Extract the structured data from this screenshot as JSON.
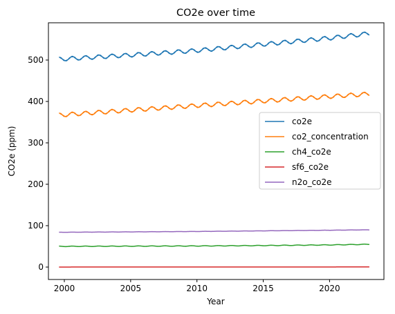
{
  "chart_data": {
    "type": "line",
    "title": "CO2e over time",
    "xlabel": "Year",
    "ylabel": "CO2e (ppm)",
    "xlim": [
      1998.8,
      2024.1
    ],
    "ylim": [
      -30,
      590
    ],
    "xticks": [
      2000,
      2005,
      2010,
      2015,
      2020
    ],
    "yticks": [
      0,
      100,
      200,
      300,
      400,
      500
    ],
    "grid": false,
    "legend_position": "center-right",
    "x_range": [
      1999.6,
      2023.0
    ],
    "series": [
      {
        "name": "co2e",
        "color": "#1f77b4",
        "seasonal_amplitude": 4.5,
        "x": [
          1999.6,
          2005,
          2010,
          2015,
          2020,
          2023.0
        ],
        "values": [
          502,
          512,
          523,
          538,
          553,
          564
        ]
      },
      {
        "name": "co2_concentration",
        "color": "#ff7f0e",
        "seasonal_amplitude": 4.5,
        "x": [
          1999.6,
          2005,
          2010,
          2015,
          2020,
          2023.0
        ],
        "values": [
          367,
          379,
          390,
          401,
          412,
          418
        ]
      },
      {
        "name": "ch4_co2e",
        "color": "#2ca02c",
        "seasonal_amplitude": 0.6,
        "x": [
          1999.6,
          2005,
          2010,
          2015,
          2020,
          2023.0
        ],
        "values": [
          50,
          50.5,
          51,
          52,
          53.5,
          55
        ]
      },
      {
        "name": "sf6_co2e",
        "color": "#d62728",
        "seasonal_amplitude": 0,
        "x": [
          1999.6,
          2005,
          2010,
          2015,
          2020,
          2023.0
        ],
        "values": [
          0.1,
          0.15,
          0.2,
          0.25,
          0.3,
          0.35
        ]
      },
      {
        "name": "n2o_co2e",
        "color": "#9467bd",
        "seasonal_amplitude": 0.2,
        "x": [
          1999.6,
          2005,
          2010,
          2015,
          2020,
          2023.0
        ],
        "values": [
          84,
          85,
          86,
          87.5,
          89,
          90
        ]
      }
    ]
  }
}
